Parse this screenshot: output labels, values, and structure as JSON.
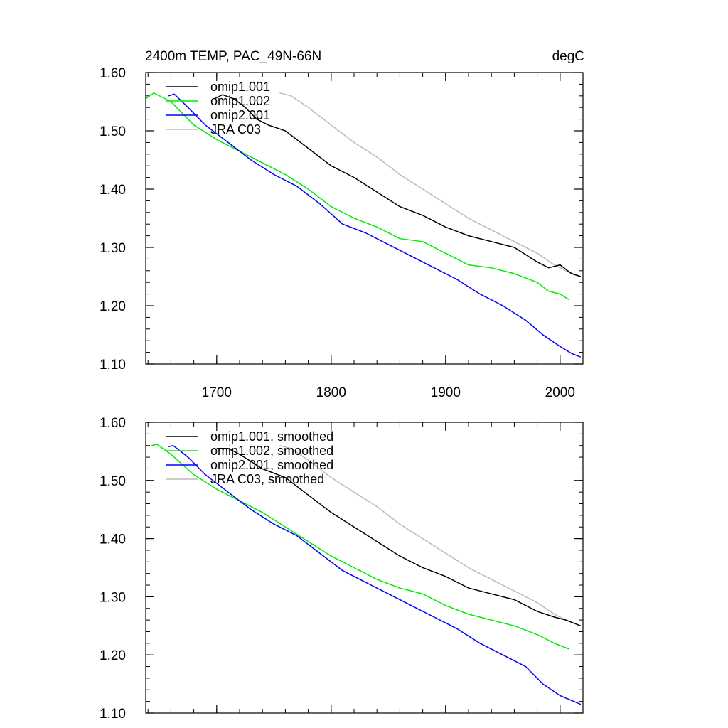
{
  "title_left": "2400m TEMP, PAC_49N-66N",
  "title_right": "degC",
  "chart_data": [
    {
      "type": "line",
      "title": "2400m TEMP, PAC_49N-66N",
      "unit": "degC",
      "xlim": [
        1638,
        2020
      ],
      "ylim": [
        1.1,
        1.6
      ],
      "x_ticks": [
        1700,
        1800,
        1900,
        2000
      ],
      "x_tick_labels": [
        "1700",
        "1800",
        "1900",
        "2000"
      ],
      "y_ticks": [
        1.1,
        1.2,
        1.3,
        1.4,
        1.5,
        1.6
      ],
      "y_tick_labels": [
        "1.10",
        "1.20",
        "1.30",
        "1.40",
        "1.50",
        "1.60"
      ],
      "legend_position": "top-left",
      "series": [
        {
          "name": "omip1.001",
          "color": "#000000",
          "x": [
            1698,
            1705,
            1715,
            1725,
            1735,
            1745,
            1760,
            1780,
            1800,
            1820,
            1840,
            1860,
            1880,
            1900,
            1920,
            1940,
            1960,
            1980,
            1990,
            2000,
            2010,
            2018
          ],
          "y": [
            1.555,
            1.562,
            1.555,
            1.54,
            1.52,
            1.51,
            1.5,
            1.47,
            1.44,
            1.42,
            1.395,
            1.37,
            1.355,
            1.335,
            1.32,
            1.31,
            1.3,
            1.275,
            1.265,
            1.27,
            1.255,
            1.25
          ]
        },
        {
          "name": "omip1.002",
          "color": "#00ee00",
          "x": [
            1638,
            1645,
            1660,
            1680,
            1700,
            1720,
            1740,
            1760,
            1780,
            1800,
            1820,
            1840,
            1860,
            1880,
            1900,
            1920,
            1940,
            1960,
            1980,
            1990,
            2000,
            2008
          ],
          "y": [
            1.555,
            1.565,
            1.55,
            1.51,
            1.485,
            1.465,
            1.445,
            1.425,
            1.4,
            1.37,
            1.35,
            1.335,
            1.315,
            1.31,
            1.29,
            1.27,
            1.265,
            1.255,
            1.24,
            1.225,
            1.22,
            1.21
          ]
        },
        {
          "name": "omip2.001",
          "color": "#0000ff",
          "x": [
            1658,
            1663,
            1675,
            1690,
            1710,
            1730,
            1750,
            1770,
            1790,
            1810,
            1830,
            1850,
            1870,
            1890,
            1910,
            1930,
            1950,
            1970,
            1985,
            2000,
            2010,
            2018
          ],
          "y": [
            1.56,
            1.563,
            1.54,
            1.51,
            1.48,
            1.45,
            1.425,
            1.405,
            1.375,
            1.34,
            1.325,
            1.305,
            1.285,
            1.265,
            1.245,
            1.22,
            1.2,
            1.175,
            1.15,
            1.13,
            1.118,
            1.112
          ]
        },
        {
          "name": "JRA C03",
          "color": "#bbbbbb",
          "x": [
            1755,
            1765,
            1780,
            1800,
            1820,
            1840,
            1860,
            1880,
            1900,
            1920,
            1940,
            1960,
            1980,
            1995,
            2005,
            2018
          ],
          "y": [
            1.565,
            1.56,
            1.54,
            1.51,
            1.48,
            1.455,
            1.425,
            1.4,
            1.375,
            1.35,
            1.33,
            1.31,
            1.29,
            1.27,
            1.26,
            1.25
          ]
        }
      ]
    },
    {
      "type": "line",
      "xlim": [
        1638,
        2020
      ],
      "ylim": [
        1.1,
        1.6
      ],
      "x_ticks": [
        1700,
        1800,
        1900,
        2000
      ],
      "y_ticks": [
        1.1,
        1.2,
        1.3,
        1.4,
        1.5,
        1.6
      ],
      "y_tick_labels": [
        "1.10",
        "1.20",
        "1.30",
        "1.40",
        "1.50",
        "1.60"
      ],
      "legend_position": "top-left",
      "series": [
        {
          "name": "omip1.001, smoothed",
          "color": "#000000",
          "x": [
            1700,
            1710,
            1720,
            1740,
            1760,
            1780,
            1800,
            1820,
            1840,
            1860,
            1880,
            1900,
            1920,
            1940,
            1960,
            1980,
            1995,
            2005,
            2018
          ],
          "y": [
            1.555,
            1.555,
            1.545,
            1.52,
            1.505,
            1.475,
            1.445,
            1.42,
            1.395,
            1.37,
            1.35,
            1.335,
            1.315,
            1.305,
            1.295,
            1.275,
            1.265,
            1.26,
            1.25
          ]
        },
        {
          "name": "omip1.002, smoothed",
          "color": "#00ee00",
          "x": [
            1643,
            1648,
            1660,
            1680,
            1700,
            1720,
            1740,
            1760,
            1780,
            1800,
            1820,
            1840,
            1860,
            1880,
            1900,
            1920,
            1940,
            1960,
            1980,
            1995,
            2008
          ],
          "y": [
            1.56,
            1.562,
            1.545,
            1.51,
            1.485,
            1.465,
            1.445,
            1.42,
            1.395,
            1.37,
            1.35,
            1.33,
            1.315,
            1.305,
            1.285,
            1.27,
            1.26,
            1.25,
            1.235,
            1.22,
            1.21
          ]
        },
        {
          "name": "omip2.001, smoothed",
          "color": "#0000ff",
          "x": [
            1658,
            1662,
            1675,
            1690,
            1710,
            1730,
            1750,
            1770,
            1790,
            1810,
            1830,
            1850,
            1870,
            1890,
            1910,
            1930,
            1950,
            1970,
            1985,
            2000,
            2018
          ],
          "y": [
            1.558,
            1.56,
            1.54,
            1.51,
            1.48,
            1.45,
            1.425,
            1.405,
            1.375,
            1.345,
            1.325,
            1.305,
            1.285,
            1.265,
            1.245,
            1.22,
            1.2,
            1.18,
            1.15,
            1.13,
            1.115
          ]
        },
        {
          "name": "JRA C03, smoothed",
          "color": "#bbbbbb",
          "x": [
            1755,
            1765,
            1780,
            1800,
            1820,
            1840,
            1860,
            1880,
            1900,
            1920,
            1940,
            1960,
            1980,
            1995,
            2005,
            2018
          ],
          "y": [
            1.56,
            1.555,
            1.535,
            1.505,
            1.48,
            1.455,
            1.425,
            1.4,
            1.375,
            1.35,
            1.33,
            1.31,
            1.29,
            1.27,
            1.26,
            1.25
          ]
        }
      ]
    }
  ]
}
